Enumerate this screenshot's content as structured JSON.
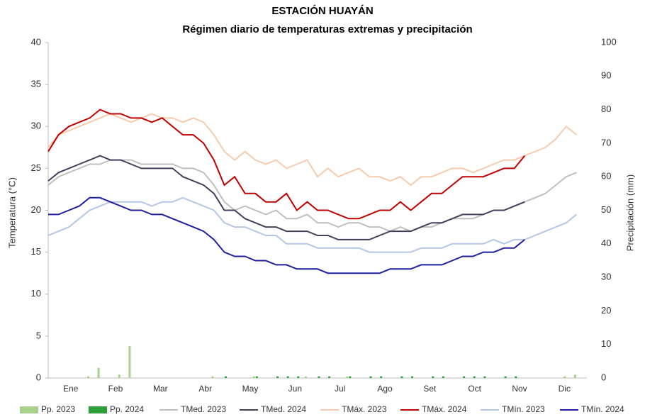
{
  "chart_data": {
    "type": "line",
    "title": "ESTACIÓN HUAYÁN",
    "subtitle": "Régimen diario de temperaturas extremas y precipitación",
    "ylabel": "Temperatura (°C)",
    "y2label": "Precipitación (mm)",
    "categories": [
      "Ene",
      "Feb",
      "Mar",
      "Abr",
      "May",
      "Jun",
      "Jul",
      "Ago",
      "Set",
      "Oct",
      "Nov",
      "Dic"
    ],
    "xlim": [
      1,
      365
    ],
    "x": [
      1,
      8,
      15,
      22,
      29,
      36,
      43,
      50,
      57,
      64,
      71,
      78,
      85,
      92,
      99,
      106,
      113,
      120,
      127,
      134,
      141,
      148,
      155,
      162,
      169,
      176,
      183,
      190,
      197,
      204,
      211,
      218,
      225,
      232,
      239,
      246,
      253,
      260,
      267,
      274,
      281,
      288,
      295,
      302,
      309,
      316,
      323,
      330,
      337,
      344,
      351,
      358
    ],
    "ylim": [
      0,
      40
    ],
    "yticks": [
      0,
      5,
      10,
      15,
      20,
      25,
      30,
      35,
      40
    ],
    "y2lim": [
      0,
      100
    ],
    "y2ticks": [
      0,
      10,
      20,
      30,
      40,
      50,
      60,
      70,
      80,
      90,
      100
    ],
    "grid": false,
    "series": [
      {
        "name": "Pp. 2023",
        "type": "bar",
        "axis": "y2",
        "color": "#a9d18e",
        "values": [
          0,
          0,
          0,
          0,
          0.5,
          3,
          0,
          1,
          9.5,
          0,
          0,
          0,
          0,
          0,
          0,
          0,
          0.5,
          0,
          0,
          0,
          0.5,
          0,
          0,
          0,
          0,
          0.5,
          0,
          0,
          0,
          0.5,
          0,
          0,
          0,
          0,
          0,
          0,
          0,
          0,
          0,
          0,
          0,
          0,
          0,
          0,
          0,
          0,
          0,
          0,
          0,
          0,
          0.5,
          1
        ]
      },
      {
        "name": "Pp. 2024",
        "type": "bar",
        "axis": "y2",
        "color": "#2e9e3a",
        "values": [
          0,
          0,
          0,
          0,
          0,
          0,
          0,
          0,
          0,
          0,
          0,
          0,
          0,
          0,
          0,
          0,
          0,
          0.5,
          0,
          0,
          0.5,
          0,
          0.5,
          0.5,
          0.5,
          0,
          0.5,
          0.5,
          0,
          0.5,
          0,
          0.5,
          0.5,
          0,
          0.5,
          0.5,
          0,
          0.5,
          0.5,
          0,
          0.5,
          0.5,
          0.5,
          0,
          0.5,
          0.5,
          0,
          null,
          null,
          null,
          null,
          null
        ]
      },
      {
        "name": "TMed. 2023",
        "color": "#bfbfbf",
        "values": [
          23,
          24,
          24.5,
          25,
          25.5,
          25.5,
          26,
          26,
          26,
          25.5,
          25.5,
          25.5,
          25.5,
          25,
          25,
          24.5,
          23,
          21,
          20,
          20.5,
          20,
          19.5,
          20,
          19,
          19,
          19.5,
          18.5,
          18.5,
          18,
          18.5,
          18.5,
          18,
          18,
          17.5,
          18,
          17.5,
          18,
          18,
          18.5,
          19,
          19,
          19,
          19.5,
          20,
          20,
          20.5,
          21,
          21.5,
          22,
          23,
          24,
          24.5
        ]
      },
      {
        "name": "TMed. 2024",
        "color": "#44405c",
        "values": [
          23.5,
          24.5,
          25,
          25.5,
          26,
          26.5,
          26,
          26,
          25.5,
          25,
          25,
          25,
          25,
          24,
          23.5,
          23,
          22,
          20,
          20,
          19,
          18.5,
          18,
          18,
          17.5,
          17.5,
          17.5,
          17,
          17,
          16.5,
          16.5,
          16.5,
          16.5,
          17,
          17.5,
          17.5,
          17.5,
          18,
          18.5,
          18.5,
          19,
          19.5,
          19.5,
          19.5,
          20,
          20,
          20.5,
          21,
          null,
          null,
          null,
          null,
          null
        ]
      },
      {
        "name": "TMáx. 2023",
        "color": "#f8cbad",
        "values": [
          27.5,
          29,
          29.5,
          30,
          30.5,
          31,
          31.5,
          31,
          30.5,
          31,
          31.5,
          31,
          31,
          30.5,
          31,
          30.5,
          29,
          27,
          26,
          27,
          26,
          25.5,
          26,
          25,
          25.5,
          26,
          24,
          25,
          24,
          24.5,
          25,
          24,
          24,
          23.5,
          24,
          23,
          24,
          24,
          24.5,
          25,
          25,
          24.5,
          25,
          25.5,
          26,
          26,
          26.5,
          27,
          27.5,
          28.5,
          30,
          29
        ]
      },
      {
        "name": "TMáx. 2024",
        "color": "#c00000",
        "values": [
          27,
          29,
          30,
          30.5,
          31,
          32,
          31.5,
          31.5,
          31,
          31,
          30.5,
          31,
          30,
          29,
          29,
          28,
          26,
          23,
          24,
          22,
          22,
          21,
          21,
          22,
          20,
          21,
          20,
          20,
          19.5,
          19,
          19,
          19.5,
          20,
          20,
          21,
          20,
          21,
          22,
          22,
          23,
          24,
          24,
          24,
          24.5,
          25,
          25,
          26.5,
          null,
          null,
          null,
          null,
          null
        ]
      },
      {
        "name": "TMín. 2023",
        "color": "#b4c7e7",
        "values": [
          17,
          17.5,
          18,
          19,
          20,
          20.5,
          21,
          21,
          21,
          21,
          20.5,
          21,
          21,
          21.5,
          21,
          20.5,
          20,
          18.5,
          18,
          18,
          17.5,
          17,
          17,
          16,
          16,
          16,
          15.5,
          15.5,
          15.5,
          15.5,
          15.5,
          15,
          15,
          15,
          15,
          15,
          15.5,
          15.5,
          15.5,
          16,
          16,
          16,
          16,
          16.5,
          16,
          16.5,
          16.5,
          17,
          17.5,
          18,
          18.5,
          19.5
        ]
      },
      {
        "name": "TMín. 2024",
        "color": "#1f1fa0",
        "values": [
          19.5,
          19.5,
          20,
          20.5,
          21.5,
          21.5,
          21,
          20.5,
          20,
          20,
          19.5,
          19.5,
          19,
          18.5,
          18,
          17.5,
          16.5,
          15,
          14.5,
          14.5,
          14,
          14,
          13.5,
          13.5,
          13,
          13,
          13,
          12.5,
          12.5,
          12.5,
          12.5,
          12.5,
          12.5,
          13,
          13,
          13,
          13.5,
          13.5,
          13.5,
          14,
          14.5,
          14.5,
          15,
          15,
          15.5,
          15.5,
          16.5,
          null,
          null,
          null,
          null,
          null
        ]
      }
    ]
  }
}
